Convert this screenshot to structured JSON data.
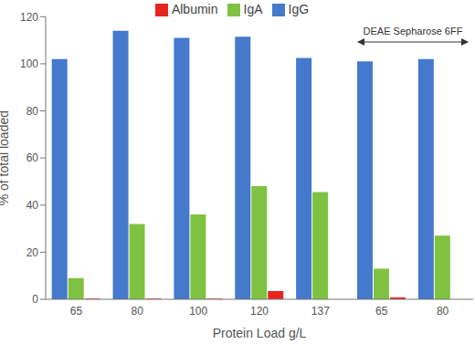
{
  "chart_data": {
    "type": "bar",
    "categories": [
      "65",
      "80",
      "100",
      "120",
      "137",
      "65",
      "80"
    ],
    "series": [
      {
        "name": "IgG",
        "color": "#4479cc",
        "values": [
          102,
          114,
          111,
          111.5,
          102.5,
          101,
          102
        ]
      },
      {
        "name": "IgA",
        "color": "#7fc241",
        "values": [
          9,
          32,
          36,
          48,
          45.5,
          13,
          27
        ]
      },
      {
        "name": "Albumin",
        "color": "#e8241f",
        "values": [
          0.3,
          0.3,
          0.3,
          3.5,
          0,
          0.8,
          0
        ]
      }
    ],
    "x_label": "Protein Load g/L",
    "y_label": "% of total loaded",
    "ylim": [
      0,
      120
    ],
    "yticks": [
      0,
      20,
      40,
      60,
      80,
      100,
      120
    ],
    "grid": false,
    "legend": "top",
    "annotation": "DEAE Sepharose 6FF"
  }
}
